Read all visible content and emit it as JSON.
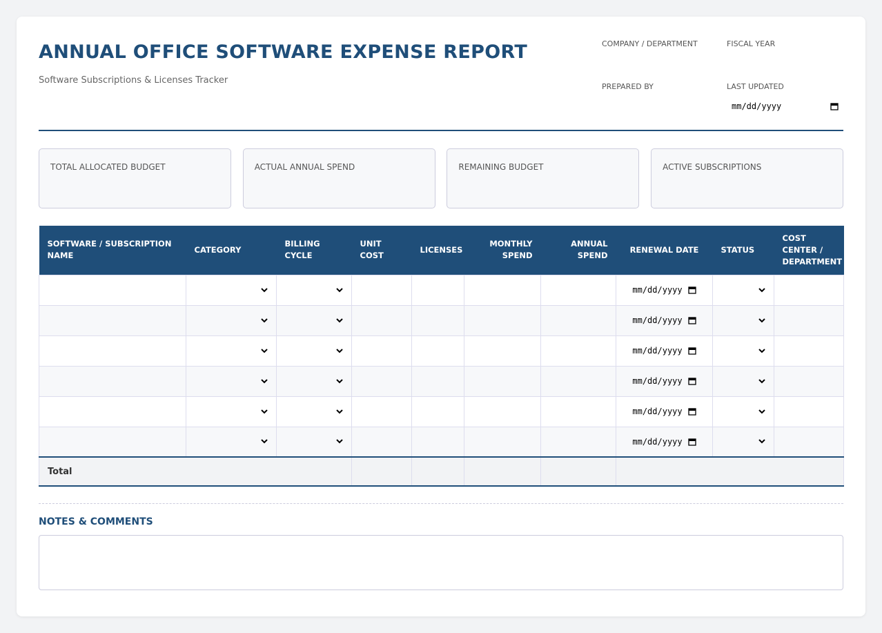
{
  "header": {
    "title": "ANNUAL OFFICE SOFTWARE EXPENSE REPORT",
    "subtitle": "Software Subscriptions & Licenses Tracker"
  },
  "meta": {
    "company_label": "COMPANY / DEPARTMENT",
    "fiscal_year_label": "FISCAL YEAR",
    "prepared_by_label": "PREPARED BY",
    "last_updated_label": "LAST UPDATED"
  },
  "date_placeholder": "mm/dd/yyyy",
  "summary": [
    "TOTAL ALLOCATED BUDGET",
    "ACTUAL ANNUAL SPEND",
    "REMAINING BUDGET",
    "ACTIVE SUBSCRIPTIONS"
  ],
  "table": {
    "columns": [
      "SOFTWARE / SUBSCRIPTION NAME",
      "CATEGORY",
      "BILLING CYCLE",
      "UNIT COST",
      "LICENSES",
      "MONTHLY SPEND",
      "ANNUAL SPEND",
      "RENEWAL DATE",
      "STATUS",
      "COST CENTER / DEPARTMENT"
    ],
    "total_label": "Total"
  },
  "notes": {
    "title": "NOTES & COMMENTS"
  }
}
